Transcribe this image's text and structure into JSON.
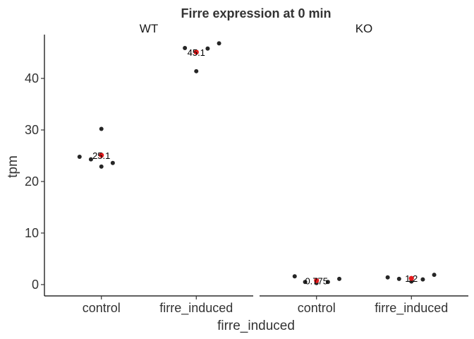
{
  "chart_data": {
    "type": "scatter",
    "title": "Firre expression at 0 min",
    "xlabel": "firre_induced",
    "ylabel": "tpm",
    "categories": [
      "control",
      "firre_induced"
    ],
    "ylim": [
      -2.2,
      48.5
    ],
    "yticks": [
      0,
      10,
      20,
      30,
      40
    ],
    "grid": false,
    "legend": "none",
    "colors": {
      "points": "#262626",
      "mean": "#e41a1c"
    },
    "panels": [
      {
        "name": "WT",
        "groups": [
          {
            "category": "control",
            "mean": 25.1,
            "mean_label": "25.1",
            "points": [
              {
                "x": -0.23,
                "y": 24.8
              },
              {
                "x": -0.11,
                "y": 24.3
              },
              {
                "x": 0.0,
                "y": 30.2
              },
              {
                "x": 0.0,
                "y": 22.9
              },
              {
                "x": 0.12,
                "y": 23.6
              }
            ]
          },
          {
            "category": "firre_induced",
            "mean": 45.1,
            "mean_label": "45.1",
            "points": [
              {
                "x": -0.12,
                "y": 45.9
              },
              {
                "x": 0.0,
                "y": 41.4
              },
              {
                "x": 0.12,
                "y": 45.8
              },
              {
                "x": 0.24,
                "y": 46.8
              }
            ]
          }
        ]
      },
      {
        "name": "KO",
        "groups": [
          {
            "category": "control",
            "mean": 0.775,
            "mean_label": "0.775",
            "points": [
              {
                "x": -0.23,
                "y": 1.6
              },
              {
                "x": -0.12,
                "y": 0.5
              },
              {
                "x": 0.0,
                "y": 0.3
              },
              {
                "x": 0.12,
                "y": 0.5
              },
              {
                "x": 0.24,
                "y": 1.1
              }
            ]
          },
          {
            "category": "firre_induced",
            "mean": 1.2,
            "mean_label": "1.2",
            "points": [
              {
                "x": -0.25,
                "y": 1.4
              },
              {
                "x": -0.13,
                "y": 1.1
              },
              {
                "x": 0.0,
                "y": 0.6
              },
              {
                "x": 0.12,
                "y": 1.0
              },
              {
                "x": 0.24,
                "y": 1.9
              }
            ]
          }
        ]
      }
    ]
  }
}
